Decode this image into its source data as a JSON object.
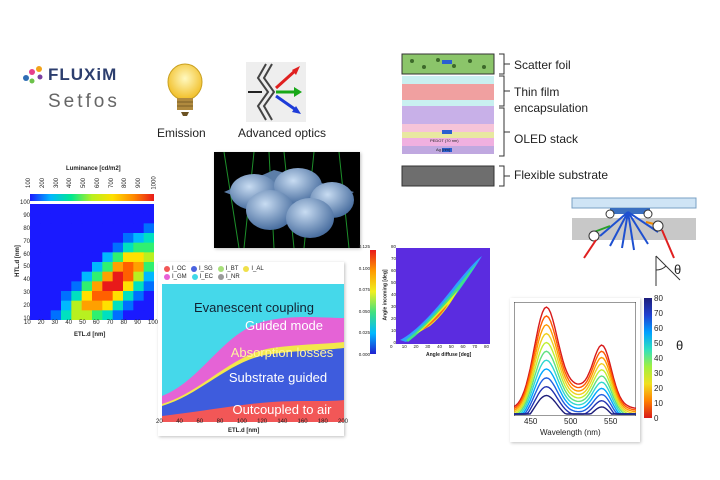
{
  "logo": {
    "brand": "FLUXiM",
    "product": "Setfos"
  },
  "icons": {
    "emission_label": "Emission",
    "optics_label": "Advanced optics"
  },
  "stack": {
    "labels": [
      "Scatter foil",
      "Thin film\nencapsulation",
      "OLED stack",
      "Flexible substrate"
    ],
    "layer_texts": [
      "PEDOT (70 nm)",
      "Ag (nm)"
    ]
  },
  "heatmap": {
    "title": "Luminance [cd/m2]",
    "colorbar_ticks": [
      "100",
      "200",
      "300",
      "400",
      "500",
      "600",
      "700",
      "800",
      "900",
      "1000"
    ],
    "xlabel": "ETL.d [nm]",
    "ylabel": "HTL.d [nm]",
    "xticks": [
      "10",
      "20",
      "30",
      "40",
      "50",
      "60",
      "70",
      "80",
      "90",
      "100"
    ],
    "yticks": [
      "100",
      "90",
      "80",
      "70",
      "60",
      "50",
      "40",
      "30",
      "20",
      "10"
    ]
  },
  "chart_data": [
    {
      "type": "area",
      "xlabel": "ETL.d [nm]",
      "x": [
        20,
        40,
        60,
        80,
        100,
        120,
        140,
        160,
        180,
        200
      ],
      "xticks": [
        "20",
        "40",
        "60",
        "80",
        "100",
        "120",
        "140",
        "160",
        "180",
        "200"
      ],
      "legend": [
        "I_OC",
        "I_SG",
        "I_BT",
        "I_AL",
        "I_GM",
        "I_EC",
        "I_NR"
      ],
      "legend_colors": [
        "#f25757",
        "#4a63e0",
        "#a8e07a",
        "#f0e04a",
        "#e860d6",
        "#40d8e8",
        "#9a9a9a"
      ],
      "region_labels": [
        "Evanescent coupling",
        "Guided mode",
        "Absorption losses",
        "Substrate guided",
        "Outcoupled to air"
      ]
    },
    {
      "type": "heatmap",
      "xlabel": "Angle diffuse [deg]",
      "ylabel": "Angle incoming [deg]",
      "xticks": [
        "0",
        "10",
        "20",
        "30",
        "40",
        "50",
        "60",
        "70",
        "80"
      ],
      "yticks": [
        "80",
        "70",
        "60",
        "50",
        "40",
        "30",
        "20",
        "10",
        "0"
      ],
      "colorbar_ticks": [
        "0.125",
        "0.100",
        "0.075",
        "0.050",
        "0.025",
        "0.000"
      ]
    },
    {
      "type": "line",
      "xlabel": "Wavelength (nm)",
      "xticks": [
        "450",
        "500",
        "550"
      ],
      "colorbar_label": "θ",
      "colorbar_ticks": [
        "80",
        "70",
        "60",
        "50",
        "40",
        "30",
        "20",
        "10",
        "0"
      ]
    }
  ],
  "geometry": {
    "angle_label": "θ"
  }
}
